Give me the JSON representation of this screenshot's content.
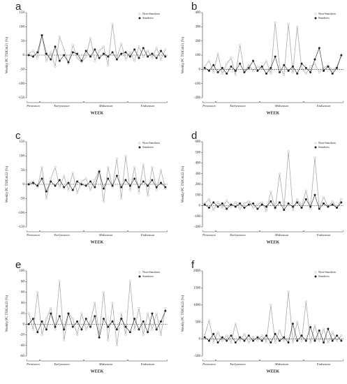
{
  "chart_data": [
    {
      "type": "line",
      "label": "a",
      "y_label": "Weekly PC TSIGm21 (%)",
      "x_label": "WEEK",
      "categories": [
        null,
        null,
        null,
        null,
        null,
        null,
        null,
        null,
        null,
        null,
        null,
        null,
        null,
        null,
        null,
        null,
        null,
        null,
        null,
        null,
        null,
        null,
        null,
        null,
        null,
        null,
        null,
        null,
        null,
        null,
        null,
        null
      ],
      "seasons": [
        {
          "name": "Preseason",
          "start": 0,
          "end": 2
        },
        {
          "name": "Earlyseason",
          "start": 3,
          "end": 12
        },
        {
          "name": "Midseason",
          "start": 13,
          "end": 22
        },
        {
          "name": "Endseason",
          "start": 23,
          "end": 31
        }
      ],
      "ylim": [
        -150,
        150
      ],
      "yticks": [
        -150,
        -100,
        -50,
        0,
        50,
        100,
        150
      ],
      "series": [
        {
          "name": "Non-Smokers",
          "color": "#aaaaaa",
          "values": [
            5,
            15,
            -10,
            70,
            -20,
            10,
            -40,
            65,
            20,
            -30,
            35,
            -10,
            -25,
            -5,
            60,
            -20,
            15,
            30,
            -35,
            110,
            -10,
            40,
            -15,
            10,
            -20,
            30,
            -5,
            15,
            -10,
            25,
            -15,
            20
          ]
        },
        {
          "name": "Smokers",
          "color": "#222222",
          "values": [
            0,
            -5,
            10,
            70,
            5,
            -15,
            30,
            -20,
            0,
            -25,
            10,
            5,
            -20,
            15,
            -5,
            20,
            -10,
            5,
            -5,
            10,
            -15,
            5,
            10,
            -5,
            20,
            -10,
            25,
            -5,
            5,
            -10,
            15,
            -5
          ]
        }
      ]
    },
    {
      "type": "line",
      "label": "b",
      "y_label": "Weekly PC TSIGm21 (%)",
      "x_label": "WEEK",
      "categories": [
        null,
        null,
        null,
        null,
        null,
        null,
        null,
        null,
        null,
        null,
        null,
        null,
        null,
        null,
        null,
        null,
        null,
        null,
        null,
        null,
        null,
        null,
        null,
        null,
        null,
        null,
        null,
        null,
        null,
        null,
        null,
        null
      ],
      "seasons": [
        {
          "name": "Preseason",
          "start": 0,
          "end": 2
        },
        {
          "name": "Earlyseason",
          "start": 3,
          "end": 12
        },
        {
          "name": "Midseason",
          "start": 13,
          "end": 22
        },
        {
          "name": "Endseason",
          "start": 23,
          "end": 31
        }
      ],
      "ylim": [
        -200,
        400
      ],
      "yticks": [
        -200,
        -100,
        0,
        100,
        200,
        300,
        400
      ],
      "series": [
        {
          "name": "Non-Smokers",
          "color": "#aaaaaa",
          "values": [
            20,
            60,
            -20,
            110,
            -30,
            40,
            80,
            -40,
            170,
            -20,
            30,
            -10,
            20,
            10,
            60,
            -30,
            330,
            20,
            -40,
            320,
            -20,
            300,
            10,
            -30,
            20,
            40,
            -20,
            10,
            30,
            -10,
            20,
            90
          ]
        },
        {
          "name": "Smokers",
          "color": "#222222",
          "values": [
            10,
            -10,
            30,
            -20,
            10,
            -30,
            20,
            -10,
            40,
            -20,
            10,
            60,
            -10,
            20,
            -30,
            10,
            90,
            -20,
            30,
            -10,
            20,
            -30,
            40,
            10,
            -20,
            70,
            150,
            -10,
            20,
            -30,
            10,
            100
          ]
        }
      ]
    },
    {
      "type": "line",
      "label": "c",
      "y_label": "Weekly PC TSIGm22 (%)",
      "x_label": "WEEK",
      "categories": [
        null,
        null,
        null,
        null,
        null,
        null,
        null,
        null,
        null,
        null,
        null,
        null,
        null,
        null,
        null,
        null,
        null,
        null,
        null,
        null,
        null,
        null,
        null,
        null,
        null,
        null,
        null,
        null,
        null,
        null,
        null,
        null
      ],
      "seasons": [
        {
          "name": "Preseason",
          "start": 0,
          "end": 2
        },
        {
          "name": "Earlyseason",
          "start": 3,
          "end": 12
        },
        {
          "name": "Midseason",
          "start": 13,
          "end": 22
        },
        {
          "name": "Endseason",
          "start": 23,
          "end": 31
        }
      ],
      "ylim": [
        -150,
        150
      ],
      "yticks": [
        -150,
        -100,
        -50,
        0,
        50,
        100,
        150
      ],
      "series": [
        {
          "name": "Non-Smokers",
          "color": "#aaaaaa",
          "values": [
            5,
            10,
            -10,
            60,
            -50,
            20,
            60,
            -10,
            30,
            -20,
            40,
            -30,
            10,
            20,
            -20,
            15,
            50,
            -60,
            60,
            -10,
            90,
            -50,
            100,
            -20,
            60,
            -30,
            70,
            -40,
            60,
            -20,
            50,
            -15
          ]
        },
        {
          "name": "Smokers",
          "color": "#222222",
          "values": [
            0,
            5,
            -5,
            20,
            -25,
            10,
            -5,
            15,
            -10,
            5,
            -20,
            10,
            0,
            -5,
            10,
            -10,
            45,
            -15,
            20,
            -5,
            30,
            -10,
            15,
            -5,
            20,
            -10,
            10,
            -5,
            15,
            -10,
            5,
            -10
          ]
        }
      ]
    },
    {
      "type": "line",
      "label": "d",
      "y_label": "Weekly PC TSIGm22 (%)",
      "x_label": "WEEK",
      "categories": [
        null,
        null,
        null,
        null,
        null,
        null,
        null,
        null,
        null,
        null,
        null,
        null,
        null,
        null,
        null,
        null,
        null,
        null,
        null,
        null,
        null,
        null,
        null,
        null,
        null,
        null,
        null,
        null,
        null,
        null,
        null,
        null
      ],
      "seasons": [
        {
          "name": "Preseason",
          "start": 0,
          "end": 2
        },
        {
          "name": "Earlyseason",
          "start": 3,
          "end": 12
        },
        {
          "name": "Midseason",
          "start": 13,
          "end": 22
        },
        {
          "name": "Endseason",
          "start": 23,
          "end": 31
        }
      ],
      "ylim": [
        -200,
        600
      ],
      "yticks": [
        -200,
        -100,
        0,
        100,
        200,
        300,
        400,
        500,
        600
      ],
      "series": [
        {
          "name": "Non-Smokers",
          "color": "#aaaaaa",
          "values": [
            20,
            60,
            -40,
            30,
            -20,
            50,
            -10,
            30,
            -30,
            20,
            40,
            -20,
            10,
            30,
            -50,
            130,
            -30,
            300,
            -20,
            510,
            -40,
            60,
            -10,
            140,
            -30,
            450,
            -20,
            80,
            -10,
            40,
            -20,
            60
          ]
        },
        {
          "name": "Smokers",
          "color": "#222222",
          "values": [
            10,
            -20,
            30,
            -10,
            20,
            -30,
            10,
            -10,
            20,
            -20,
            10,
            20,
            -30,
            10,
            -10,
            40,
            -20,
            30,
            -40,
            20,
            -10,
            30,
            -20,
            60,
            -10,
            100,
            -30,
            20,
            -10,
            10,
            -20,
            30
          ]
        }
      ]
    },
    {
      "type": "line",
      "label": "e",
      "y_label": "Weekly PC TSIGm23 (%)",
      "x_label": "WEEK",
      "categories": [
        null,
        null,
        null,
        null,
        null,
        null,
        null,
        null,
        null,
        null,
        null,
        null,
        null,
        null,
        null,
        null,
        null,
        null,
        null,
        null,
        null,
        null,
        null,
        null,
        null,
        null,
        null,
        null,
        null,
        null,
        null,
        null
      ],
      "seasons": [
        {
          "name": "Preseason",
          "start": 0,
          "end": 2
        },
        {
          "name": "Earlyseason",
          "start": 3,
          "end": 12
        },
        {
          "name": "Midseason",
          "start": 13,
          "end": 22
        },
        {
          "name": "Endseason",
          "start": 23,
          "end": 31
        }
      ],
      "ylim": [
        -60,
        100
      ],
      "yticks": [
        -60,
        -40,
        -20,
        0,
        20,
        40,
        60,
        80,
        100
      ],
      "series": [
        {
          "name": "Non-Smokers",
          "color": "#aaaaaa",
          "values": [
            20,
            -10,
            60,
            -20,
            10,
            30,
            -10,
            80,
            -30,
            20,
            10,
            -20,
            20,
            -10,
            5,
            40,
            -20,
            60,
            -30,
            40,
            -40,
            20,
            -20,
            80,
            -10,
            30,
            -20,
            20,
            -10,
            20,
            -20,
            30
          ]
        },
        {
          "name": "Smokers",
          "color": "#222222",
          "values": [
            0,
            10,
            -15,
            5,
            -10,
            20,
            -5,
            15,
            -10,
            20,
            -5,
            5,
            -10,
            10,
            -5,
            15,
            -25,
            10,
            -5,
            5,
            -10,
            10,
            -5,
            -15,
            10,
            -10,
            5,
            -15,
            20,
            -10,
            5,
            25
          ]
        }
      ]
    },
    {
      "type": "line",
      "label": "f",
      "y_label": "Weekly PC TSIGm23 (%)",
      "x_label": "WEEK",
      "categories": [
        null,
        null,
        null,
        null,
        null,
        null,
        null,
        null,
        null,
        null,
        null,
        null,
        null,
        null,
        null,
        null,
        null,
        null,
        null,
        null,
        null,
        null,
        null,
        null,
        null,
        null,
        null,
        null,
        null,
        null,
        null,
        null
      ],
      "seasons": [
        {
          "name": "Preseason",
          "start": 0,
          "end": 2
        },
        {
          "name": "Earlyseason",
          "start": 3,
          "end": 12
        },
        {
          "name": "Midseason",
          "start": 13,
          "end": 22
        },
        {
          "name": "Endseason",
          "start": 23,
          "end": 31
        }
      ],
      "ylim": [
        -500,
        2000
      ],
      "yticks": [
        -500,
        0,
        500,
        1000,
        1500,
        2000
      ],
      "series": [
        {
          "name": "Non-Smokers",
          "color": "#aaaaaa",
          "values": [
            100,
            550,
            -100,
            200,
            -50,
            100,
            -100,
            450,
            -50,
            150,
            -100,
            50,
            -50,
            100,
            -80,
            1000,
            -100,
            250,
            -50,
            1400,
            -100,
            500,
            -50,
            1100,
            -100,
            400,
            -50,
            300,
            -100,
            200,
            -50,
            100
          ]
        },
        {
          "name": "Smokers",
          "color": "#222222",
          "values": [
            50,
            -50,
            150,
            -100,
            50,
            -50,
            100,
            -100,
            50,
            -50,
            100,
            -50,
            50,
            -50,
            100,
            -100,
            150,
            -50,
            50,
            -100,
            450,
            -50,
            100,
            -50,
            350,
            -50,
            250,
            -100,
            300,
            -50,
            100,
            -50
          ]
        }
      ]
    }
  ]
}
